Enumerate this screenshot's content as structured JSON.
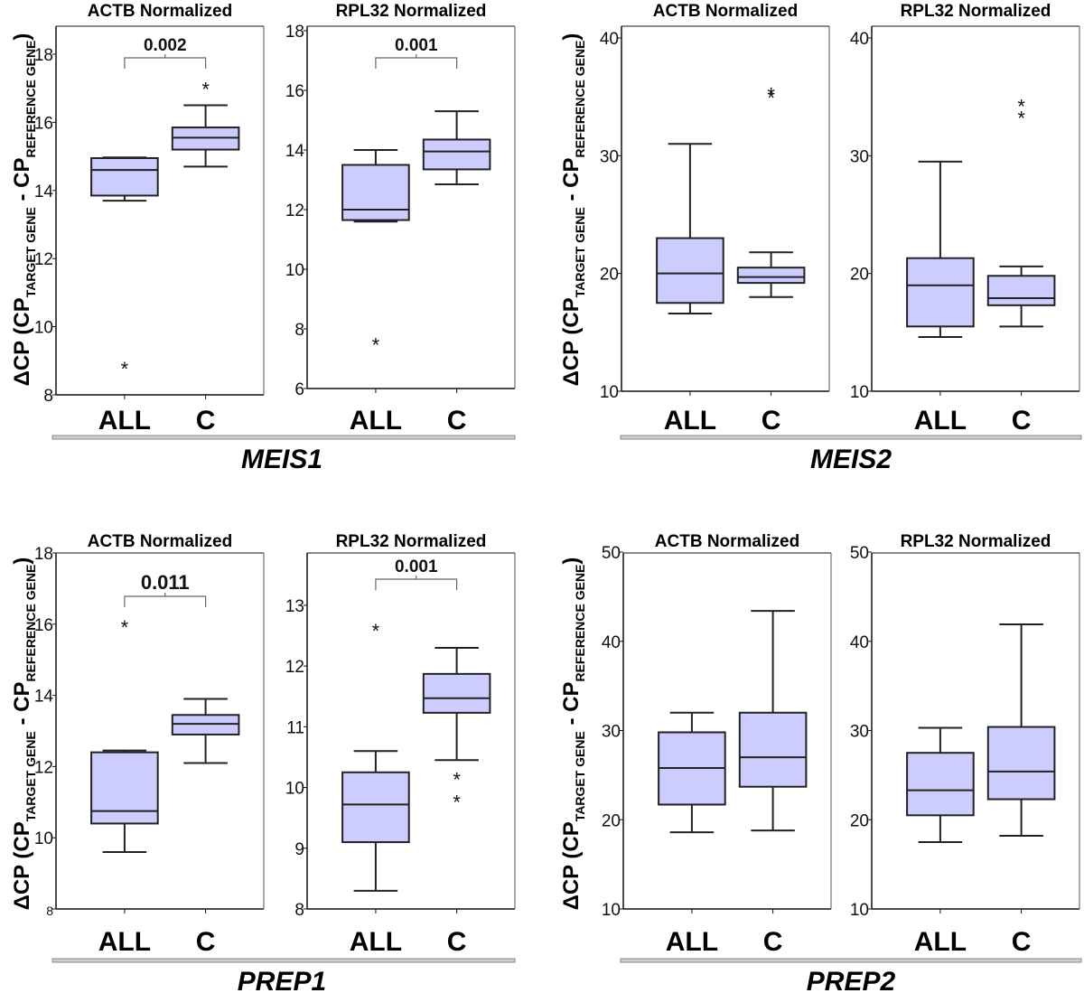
{
  "figure": {
    "ylabel_main": "ΔCP (CP",
    "ylabel_sub1": "TARGET GENE",
    "ylabel_mid": " - CP",
    "ylabel_sub2": "REFERENCE GENE",
    "ylabel_end": ")",
    "box_fill": "#ccccff",
    "box_stroke": "#222222"
  },
  "chart_data": [
    {
      "type": "box",
      "gene": "MEIS1",
      "title": "ACTB Normalized",
      "categories": [
        "ALL",
        "C"
      ],
      "ylim": [
        8,
        18
      ],
      "yticks": [
        8,
        10,
        12,
        14,
        16,
        18
      ],
      "boxes": [
        {
          "name": "ALL",
          "whisker_low": 13.7,
          "q1": 13.85,
          "median": 14.6,
          "q3": 14.95,
          "whisker_high": 14.97,
          "outliers": [
            8.8
          ]
        },
        {
          "name": "C",
          "whisker_low": 14.7,
          "q1": 15.2,
          "median": 15.55,
          "q3": 15.85,
          "whisker_high": 16.5,
          "outliers": [
            17.0
          ]
        }
      ],
      "pvalue": "0.002"
    },
    {
      "type": "box",
      "gene": "MEIS1",
      "title": "RPL32 Normalized",
      "categories": [
        "ALL",
        "C"
      ],
      "ylim": [
        6,
        18
      ],
      "yticks": [
        6,
        8,
        10,
        12,
        14,
        16,
        18
      ],
      "boxes": [
        {
          "name": "ALL",
          "whisker_low": 11.6,
          "q1": 11.65,
          "median": 12.0,
          "q3": 13.5,
          "whisker_high": 14.0,
          "outliers": [
            7.5
          ]
        },
        {
          "name": "C",
          "whisker_low": 12.85,
          "q1": 13.35,
          "median": 13.95,
          "q3": 14.35,
          "whisker_high": 15.3,
          "outliers": []
        }
      ],
      "pvalue": "0.001"
    },
    {
      "type": "box",
      "gene": "MEIS2",
      "title": "ACTB Normalized",
      "categories": [
        "ALL",
        "C"
      ],
      "ylim": [
        10,
        40
      ],
      "yticks": [
        10,
        20,
        30,
        40
      ],
      "boxes": [
        {
          "name": "ALL",
          "whisker_low": 16.6,
          "q1": 17.5,
          "median": 20.0,
          "q3": 23.0,
          "whisker_high": 31.0,
          "outliers": []
        },
        {
          "name": "C",
          "whisker_low": 18.0,
          "q1": 19.2,
          "median": 19.7,
          "q3": 20.5,
          "whisker_high": 21.8,
          "outliers": [
            35.0,
            35.3
          ]
        }
      ],
      "pvalue": ""
    },
    {
      "type": "box",
      "gene": "MEIS2",
      "title": "RPL32 Normalized",
      "categories": [
        "ALL",
        "C"
      ],
      "ylim": [
        10,
        40
      ],
      "yticks": [
        10,
        20,
        30,
        40
      ],
      "boxes": [
        {
          "name": "ALL",
          "whisker_low": 14.6,
          "q1": 15.5,
          "median": 19.0,
          "q3": 21.3,
          "whisker_high": 29.5,
          "outliers": []
        },
        {
          "name": "C",
          "whisker_low": 15.5,
          "q1": 17.3,
          "median": 17.9,
          "q3": 19.8,
          "whisker_high": 20.6,
          "outliers": [
            33.3,
            34.3
          ]
        }
      ],
      "pvalue": ""
    },
    {
      "type": "box",
      "gene": "PREP1",
      "title": "ACTB Normalized",
      "categories": [
        "ALL",
        "C"
      ],
      "ylim": [
        8,
        18
      ],
      "yticks": [
        8,
        10,
        12,
        14,
        16,
        18
      ],
      "boxes": [
        {
          "name": "ALL",
          "whisker_low": 9.6,
          "q1": 10.4,
          "median": 10.75,
          "q3": 12.4,
          "whisker_high": 12.45,
          "outliers": [
            15.95
          ]
        },
        {
          "name": "C",
          "whisker_low": 12.1,
          "q1": 12.9,
          "median": 13.2,
          "q3": 13.45,
          "whisker_high": 13.9,
          "outliers": []
        }
      ],
      "pvalue": "0.011"
    },
    {
      "type": "box",
      "gene": "PREP1",
      "title": "RPL32 Normalized",
      "categories": [
        "ALL",
        "C"
      ],
      "ylim": [
        8,
        13.4
      ],
      "yticks": [
        8,
        9,
        10,
        11,
        12,
        13
      ],
      "boxes": [
        {
          "name": "ALL",
          "whisker_low": 8.3,
          "q1": 9.1,
          "median": 9.72,
          "q3": 10.25,
          "whisker_high": 10.6,
          "outliers": [
            12.6
          ]
        },
        {
          "name": "C",
          "whisker_low": 10.45,
          "q1": 11.23,
          "median": 11.47,
          "q3": 11.87,
          "whisker_high": 12.3,
          "outliers": [
            10.15,
            9.78
          ]
        }
      ],
      "pvalue": "0.001"
    },
    {
      "type": "box",
      "gene": "PREP2",
      "title": "ACTB Normalized",
      "categories": [
        "ALL",
        "C"
      ],
      "ylim": [
        10,
        50
      ],
      "yticks": [
        10,
        20,
        30,
        40,
        50
      ],
      "boxes": [
        {
          "name": "ALL",
          "whisker_low": 18.6,
          "q1": 21.7,
          "median": 25.8,
          "q3": 29.8,
          "whisker_high": 32.0,
          "outliers": []
        },
        {
          "name": "C",
          "whisker_low": 18.8,
          "q1": 23.7,
          "median": 27.0,
          "q3": 32.0,
          "whisker_high": 43.4,
          "outliers": []
        }
      ],
      "pvalue": ""
    },
    {
      "type": "box",
      "gene": "PREP2",
      "title": "RPL32 Normalized",
      "categories": [
        "ALL",
        "C"
      ],
      "ylim": [
        10,
        50
      ],
      "yticks": [
        10,
        20,
        30,
        40,
        50
      ],
      "boxes": [
        {
          "name": "ALL",
          "whisker_low": 17.5,
          "q1": 20.5,
          "median": 23.3,
          "q3": 27.5,
          "whisker_high": 30.3,
          "outliers": []
        },
        {
          "name": "C",
          "whisker_low": 18.2,
          "q1": 22.3,
          "median": 25.4,
          "q3": 30.4,
          "whisker_high": 41.9,
          "outliers": []
        }
      ],
      "pvalue": ""
    }
  ]
}
